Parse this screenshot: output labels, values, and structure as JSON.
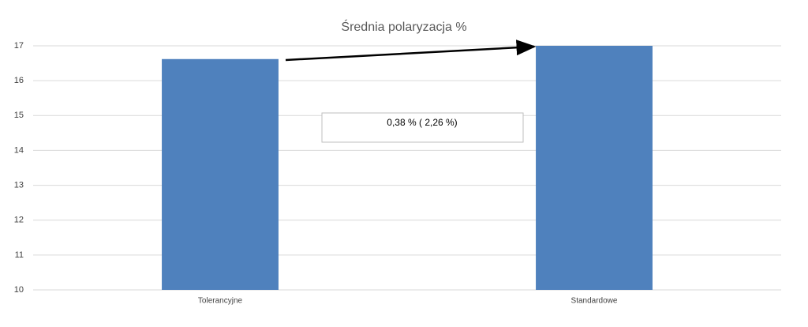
{
  "chart_data": {
    "type": "bar",
    "title": "Średnia polaryzacja %",
    "categories": [
      "Tolerancyjne",
      "Standardowe"
    ],
    "values": [
      16.62,
      17.0
    ],
    "color": "#4f81bd",
    "ylim": [
      10,
      17
    ],
    "yticks": [
      10,
      11,
      12,
      13,
      14,
      15,
      16,
      17
    ],
    "grid": true,
    "annotation": "0,38 % ( 2,26 %)"
  }
}
